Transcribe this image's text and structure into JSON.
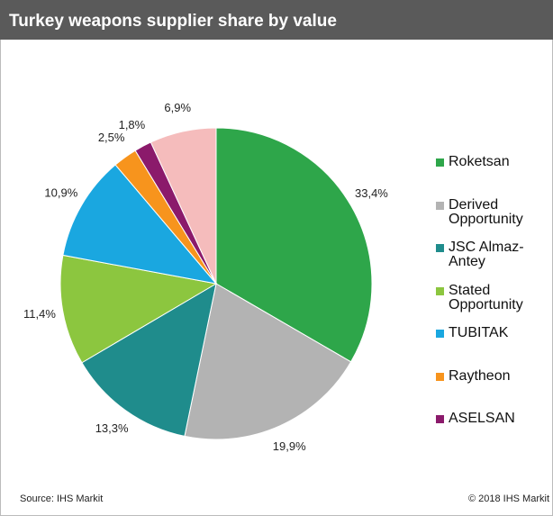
{
  "chart_data": {
    "type": "pie",
    "title": "Turkey weapons supplier share by value",
    "categories": [
      "Roketsan",
      "Derived Opportunity",
      "JSC Almaz-Antey",
      "Stated Opportunity",
      "TUBITAK",
      "Raytheon",
      "ASELSAN",
      null
    ],
    "values": [
      33.4,
      19.9,
      13.3,
      11.4,
      10.9,
      2.5,
      1.8,
      6.9
    ],
    "value_labels": [
      "33,4%",
      "19,9%",
      "13,3%",
      "11,4%",
      "10,9%",
      "2,5%",
      "1,8%",
      "6,9%"
    ],
    "colors": [
      "#2ea64a",
      "#b3b3b3",
      "#1f8c8c",
      "#8cc63f",
      "#1aa7e0",
      "#f7941d",
      "#8b1a6b",
      "#f5bcbc"
    ],
    "source": "Source: IHS Markit",
    "copyright": "© 2018 IHS Markit"
  }
}
